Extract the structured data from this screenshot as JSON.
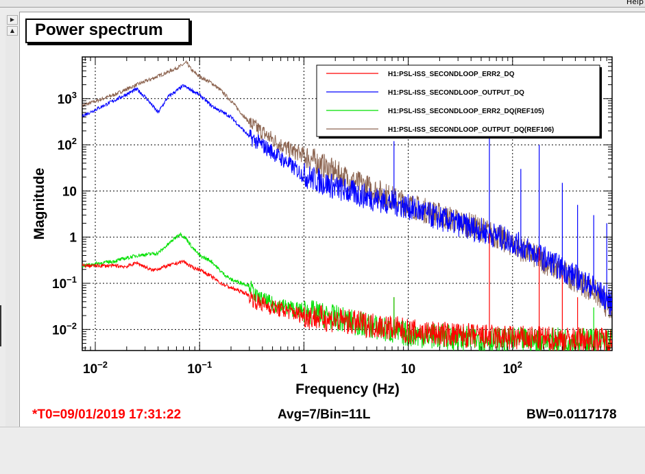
{
  "window": {
    "help_label": "Help"
  },
  "plot": {
    "title": "Power spectrum",
    "footer": {
      "t0": "*T0=09/01/2019 17:31:22",
      "avg": "Avg=7/Bin=11L",
      "bw": "BW=0.0117178"
    }
  },
  "colors": {
    "err2": "#ff0000",
    "output": "#0000ff",
    "err2_ref": "#00e000",
    "output_ref": "#8c6450"
  },
  "chart_data": {
    "type": "line",
    "title": "Power spectrum",
    "xlabel": "Frequency (Hz)",
    "ylabel": "Magnitude",
    "xscale": "log",
    "yscale": "log",
    "xlim": [
      0.0075,
      900
    ],
    "ylim": [
      0.0035,
      8000
    ],
    "x_ticks": [
      {
        "value": 0.01,
        "base": "10",
        "exp": "−2"
      },
      {
        "value": 0.1,
        "base": "10",
        "exp": "−1"
      },
      {
        "value": 1,
        "base": "1",
        "exp": ""
      },
      {
        "value": 10,
        "base": "10",
        "exp": ""
      },
      {
        "value": 100,
        "base": "10",
        "exp": "2"
      }
    ],
    "y_ticks": [
      {
        "value": 0.01,
        "base": "10",
        "exp": "−2"
      },
      {
        "value": 0.1,
        "base": "10",
        "exp": "−1"
      },
      {
        "value": 1,
        "base": "1",
        "exp": ""
      },
      {
        "value": 10,
        "base": "10",
        "exp": ""
      },
      {
        "value": 100,
        "base": "10",
        "exp": "2"
      },
      {
        "value": 1000,
        "base": "10",
        "exp": "3"
      }
    ],
    "grid": true,
    "legend_position": "top-right",
    "series": [
      {
        "name": "H1:PSL-ISS_SECONDLOOP_ERR2_DQ",
        "color": "#ff0000",
        "x": [
          0.0075,
          0.015,
          0.02,
          0.025,
          0.035,
          0.05,
          0.07,
          0.085,
          0.1,
          0.13,
          0.16,
          0.2,
          0.28,
          0.35,
          0.5,
          0.7,
          1,
          2,
          3,
          5,
          7,
          10,
          20,
          50,
          100,
          200,
          400,
          600,
          900
        ],
        "y": [
          0.24,
          0.24,
          0.23,
          0.28,
          0.19,
          0.24,
          0.3,
          0.22,
          0.2,
          0.14,
          0.1,
          0.08,
          0.06,
          0.04,
          0.03,
          0.025,
          0.02,
          0.016,
          0.014,
          0.012,
          0.011,
          0.009,
          0.008,
          0.007,
          0.0065,
          0.0062,
          0.006,
          0.006,
          0.006
        ]
      },
      {
        "name": "H1:PSL-ISS_SECONDLOOP_OUTPUT_DQ",
        "color": "#0000ff",
        "x": [
          0.0075,
          0.015,
          0.025,
          0.03,
          0.04,
          0.05,
          0.07,
          0.085,
          0.1,
          0.13,
          0.2,
          0.3,
          0.5,
          0.7,
          1,
          2,
          3,
          5,
          7,
          10,
          20,
          50,
          100,
          200,
          400,
          600,
          900
        ],
        "y": [
          420,
          900,
          1600,
          1100,
          500,
          1100,
          1900,
          1500,
          1200,
          700,
          400,
          150,
          70,
          40,
          22,
          12,
          9,
          6.5,
          5.5,
          4.5,
          2.5,
          1.4,
          0.8,
          0.35,
          0.14,
          0.08,
          0.035
        ]
      },
      {
        "name": "H1:PSL-ISS_SECONDLOOP_ERR2_DQ(REF105)",
        "color": "#00e000",
        "x": [
          0.0075,
          0.015,
          0.025,
          0.04,
          0.05,
          0.065,
          0.075,
          0.085,
          0.1,
          0.13,
          0.16,
          0.2,
          0.3,
          0.35,
          0.5,
          0.7,
          1,
          2,
          3,
          5,
          7,
          10,
          20,
          50,
          100,
          200,
          400,
          600,
          900
        ],
        "y": [
          0.24,
          0.3,
          0.4,
          0.45,
          0.7,
          1.2,
          0.9,
          0.6,
          0.4,
          0.3,
          0.18,
          0.12,
          0.09,
          0.05,
          0.035,
          0.03,
          0.025,
          0.018,
          0.014,
          0.011,
          0.009,
          0.008,
          0.007,
          0.006,
          0.0058,
          0.0058,
          0.0058,
          0.0058,
          0.0058
        ]
      },
      {
        "name": "H1:PSL-ISS_SECONDLOOP_OUTPUT_DQ(REF106)",
        "color": "#8c6450",
        "x": [
          0.0075,
          0.015,
          0.025,
          0.035,
          0.05,
          0.065,
          0.075,
          0.085,
          0.1,
          0.13,
          0.16,
          0.2,
          0.3,
          0.5,
          0.7,
          1,
          2,
          3,
          5,
          7,
          10,
          20,
          50,
          100,
          200,
          400,
          600,
          900
        ],
        "y": [
          700,
          1200,
          2000,
          2700,
          3800,
          5000,
          6000,
          4000,
          3000,
          2200,
          1500,
          900,
          300,
          130,
          80,
          60,
          25,
          16,
          10,
          7,
          5,
          3,
          1.5,
          0.7,
          0.3,
          0.12,
          0.07,
          0.025
        ]
      }
    ],
    "spikes": [
      {
        "series": 1,
        "x": 7.3,
        "y": 120
      },
      {
        "series": 1,
        "x": 60,
        "y": 160
      },
      {
        "series": 1,
        "x": 120,
        "y": 30
      },
      {
        "series": 1,
        "x": 180,
        "y": 100
      },
      {
        "series": 1,
        "x": 300,
        "y": 15
      },
      {
        "series": 1,
        "x": 420,
        "y": 5
      },
      {
        "series": 1,
        "x": 600,
        "y": 3
      },
      {
        "series": 1,
        "x": 800,
        "y": 2
      },
      {
        "series": 0,
        "x": 7.3,
        "y": 0.05
      },
      {
        "series": 0,
        "x": 60,
        "y": 1.2
      },
      {
        "series": 0,
        "x": 180,
        "y": 0.6
      },
      {
        "series": 0,
        "x": 300,
        "y": 0.15
      },
      {
        "series": 0,
        "x": 420,
        "y": 0.05
      },
      {
        "series": 2,
        "x": 7.3,
        "y": 0.05
      },
      {
        "series": 2,
        "x": 600,
        "y": 0.03
      }
    ]
  }
}
